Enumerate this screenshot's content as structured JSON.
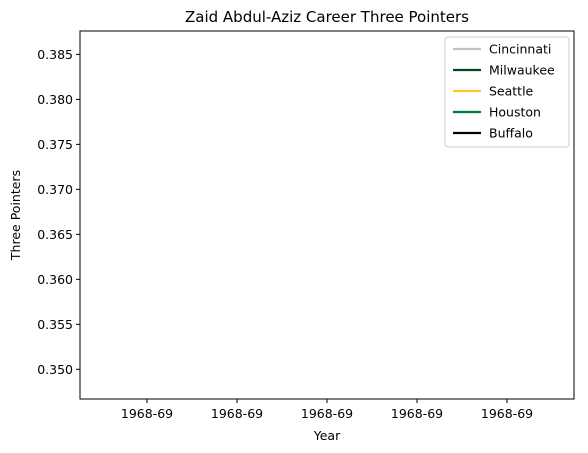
{
  "chart_data": {
    "type": "line",
    "title": "Zaid Abdul-Aziz Career Three Pointers",
    "xlabel": "Year",
    "ylabel": "Three Pointers",
    "x_ticks": [
      "1968-69",
      "1968-69",
      "1968-69",
      "1968-69",
      "1968-69"
    ],
    "y_ticks": [
      0.35,
      0.355,
      0.36,
      0.365,
      0.37,
      0.375,
      0.38,
      0.385
    ],
    "ylim": [
      0.3467,
      0.3876
    ],
    "grid": false,
    "legend_position": "top-right",
    "series": [
      {
        "name": "Cincinnati",
        "color": "#c0c0c0",
        "values": []
      },
      {
        "name": "Milwaukee",
        "color": "#00471b",
        "values": []
      },
      {
        "name": "Seattle",
        "color": "#ffc72c",
        "values": []
      },
      {
        "name": "Houston",
        "color": "#007a33",
        "values": []
      },
      {
        "name": "Buffalo",
        "color": "#000000",
        "values": []
      }
    ]
  }
}
